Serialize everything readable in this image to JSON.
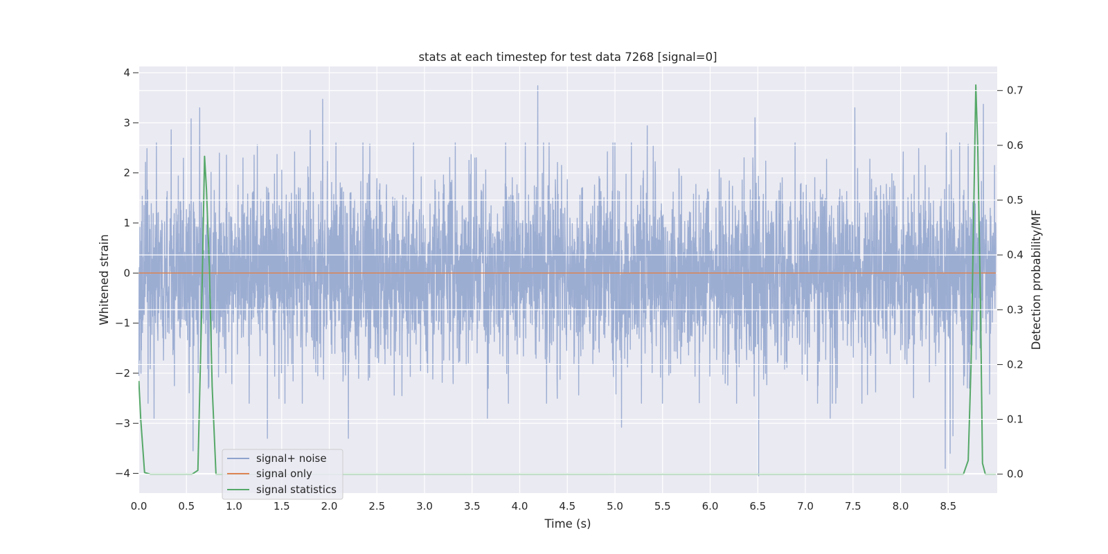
{
  "chart_data": {
    "type": "line",
    "title": "stats at each timestep for test data 7268 [signal=0]",
    "xlabel": "Time (s)",
    "ylabel": "Whitened strain",
    "y2label": "Detection probability/MF",
    "xlim": [
      0.0,
      9.0
    ],
    "ylim": [
      -4.4,
      4.1
    ],
    "y2lim": [
      -0.035,
      0.735
    ],
    "x_ticks": [
      "0.0",
      "0.5",
      "1.0",
      "1.5",
      "2.0",
      "2.5",
      "3.0",
      "3.5",
      "4.0",
      "4.5",
      "5.0",
      "5.5",
      "6.0",
      "6.5",
      "7.0",
      "7.5",
      "8.0",
      "8.5"
    ],
    "y_ticks": [
      "−4",
      "−3",
      "−2",
      "−1",
      "0",
      "1",
      "2",
      "3",
      "4"
    ],
    "y2_ticks": [
      "0.0",
      "0.1",
      "0.2",
      "0.3",
      "0.4",
      "0.5",
      "0.6",
      "0.7"
    ],
    "grid": true,
    "legend_position": "lower-left",
    "series": [
      {
        "name": "signal+ noise",
        "axis": "left",
        "color": "#8ea2cc",
        "kind": "dense-noise",
        "t_end": 9.0,
        "core_std": 1.0,
        "peaks": [
          {
            "x": 0.64,
            "y": 3.3
          },
          {
            "x": 0.55,
            "y": 3.08
          },
          {
            "x": 0.34,
            "y": 2.86
          },
          {
            "x": 1.8,
            "y": 2.85
          },
          {
            "x": 1.93,
            "y": 3.47
          },
          {
            "x": 4.19,
            "y": 3.74
          },
          {
            "x": 5.34,
            "y": 2.94
          },
          {
            "x": 6.47,
            "y": 3.1
          },
          {
            "x": 7.52,
            "y": 3.3
          },
          {
            "x": 8.48,
            "y": 2.8
          },
          {
            "x": 8.87,
            "y": 3.37
          },
          {
            "x": 0.57,
            "y": -3.55
          },
          {
            "x": 1.35,
            "y": -3.3
          },
          {
            "x": 2.2,
            "y": -3.3
          },
          {
            "x": 5.07,
            "y": -3.08
          },
          {
            "x": 6.51,
            "y": -4.05
          },
          {
            "x": 8.47,
            "y": -3.9
          },
          {
            "x": 8.52,
            "y": -3.6
          },
          {
            "x": 8.55,
            "y": -3.25
          },
          {
            "x": 0.16,
            "y": -2.9
          },
          {
            "x": 3.66,
            "y": -2.9
          },
          {
            "x": 7.26,
            "y": -2.9
          }
        ]
      },
      {
        "name": "signal only",
        "axis": "left",
        "color": "#dd8452",
        "x": [
          0.0,
          9.0
        ],
        "y": [
          0.0,
          0.0
        ]
      },
      {
        "name": "signal statistics",
        "axis": "right",
        "color": "#55a868",
        "x": [
          0.0,
          0.02,
          0.06,
          0.12,
          0.2,
          0.3,
          0.4,
          0.5,
          0.56,
          0.62,
          0.66,
          0.69,
          0.71,
          0.74,
          0.77,
          0.81,
          0.86,
          1.0,
          2.0,
          4.0,
          6.0,
          8.0,
          8.66,
          8.71,
          8.74,
          8.77,
          8.79,
          8.81,
          8.84,
          8.86,
          8.89,
          9.0
        ],
        "y": [
          0.17,
          0.1,
          0.003,
          0.0,
          0.0,
          0.0,
          0.0,
          0.0,
          0.0,
          0.007,
          0.3,
          0.58,
          0.52,
          0.38,
          0.16,
          0.0,
          0.0,
          0.0,
          0.0,
          0.0,
          0.0,
          0.0,
          0.0,
          0.025,
          0.2,
          0.5,
          0.71,
          0.6,
          0.3,
          0.02,
          0.0,
          0.0
        ]
      }
    ]
  }
}
